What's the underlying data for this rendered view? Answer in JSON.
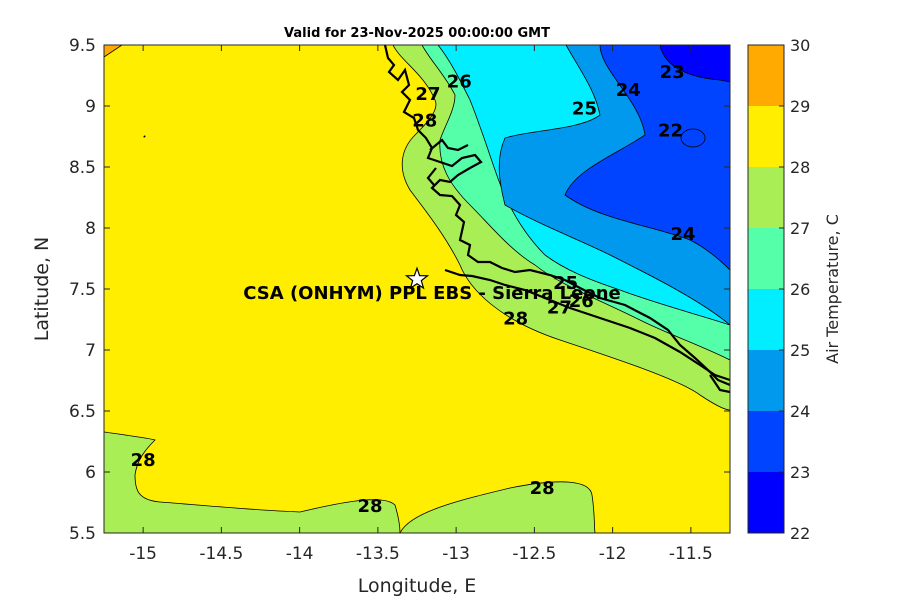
{
  "title": "Valid for 23-Nov-2025 00:00:00 GMT",
  "xlabel": "Longitude, E",
  "ylabel": "Latitude, N",
  "colorbar_label": "Air Temperature, C",
  "site_label": "CSA (ONHYM) PPL EBS  - Sierra Leone",
  "site_marker": "star-icon",
  "chart_data": {
    "type": "heatmap",
    "variable": "Air Temperature",
    "units": "C",
    "xlim": [
      -15.25,
      -11.25
    ],
    "ylim": [
      5.5,
      9.5
    ],
    "x_ticks": [
      -15,
      -14.5,
      -14,
      -13.5,
      -13,
      -12.5,
      -12,
      -11.5
    ],
    "x_tick_labels": [
      "-15",
      "-14.5",
      "-14",
      "-13.5",
      "-13",
      "-12.5",
      "-12",
      "-11.5"
    ],
    "y_ticks": [
      5.5,
      6,
      6.5,
      7,
      7.5,
      8,
      8.5,
      9,
      9.5
    ],
    "y_tick_labels": [
      "5.5",
      "6",
      "6.5",
      "7",
      "7.5",
      "8",
      "8.5",
      "9",
      "9.5"
    ],
    "colorbar": {
      "range": [
        22,
        30
      ],
      "ticks": [
        "22",
        "23",
        "24",
        "25",
        "26",
        "27",
        "28",
        "29",
        "30"
      ],
      "colors": [
        "#0000ff",
        "#0044ff",
        "#0099ee",
        "#00eeff",
        "#55ffaa",
        "#aaee55",
        "#ffee00",
        "#ffaa00",
        "#ff5500"
      ]
    },
    "site": {
      "lon": -13.25,
      "lat": 7.58
    },
    "contour_labels": [
      {
        "text": "22",
        "lon": -11.63,
        "lat": 8.8
      },
      {
        "text": "23",
        "lon": -11.62,
        "lat": 9.28
      },
      {
        "text": "24",
        "lon": -11.9,
        "lat": 9.13
      },
      {
        "text": "24",
        "lon": -11.55,
        "lat": 7.95
      },
      {
        "text": "25",
        "lon": -12.18,
        "lat": 8.98
      },
      {
        "text": "25",
        "lon": -12.3,
        "lat": 7.55
      },
      {
        "text": "26",
        "lon": -12.98,
        "lat": 9.2
      },
      {
        "text": "26",
        "lon": -12.2,
        "lat": 7.4
      },
      {
        "text": "27",
        "lon": -13.18,
        "lat": 9.1
      },
      {
        "text": "27",
        "lon": -12.34,
        "lat": 7.35
      },
      {
        "text": "28",
        "lon": -13.2,
        "lat": 8.88
      },
      {
        "text": "28",
        "lon": -12.62,
        "lat": 7.26
      },
      {
        "text": "28",
        "lon": -15.0,
        "lat": 6.1
      },
      {
        "text": "28",
        "lon": -13.55,
        "lat": 5.72
      },
      {
        "text": "28",
        "lon": -12.45,
        "lat": 5.87
      }
    ]
  }
}
